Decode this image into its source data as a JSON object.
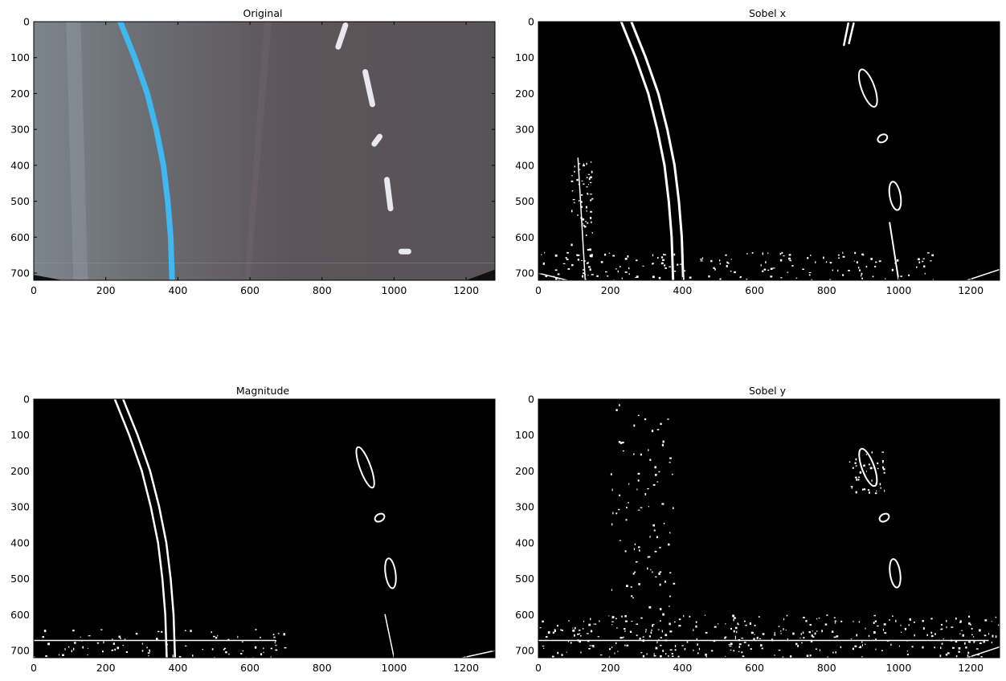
{
  "figure": {
    "panels": [
      {
        "title": "Original",
        "kind": "original"
      },
      {
        "title": "Sobel x",
        "kind": "sobelx"
      },
      {
        "title": "Magnitude",
        "kind": "magnitude"
      },
      {
        "title": "Sobel y",
        "kind": "sobely"
      }
    ]
  },
  "axes": {
    "x_ticks": [
      "0",
      "200",
      "400",
      "600",
      "800",
      "1000",
      "1200"
    ],
    "x_tick_values": [
      0,
      200,
      400,
      600,
      800,
      1000,
      1200
    ],
    "y_ticks": [
      "0",
      "100",
      "200",
      "300",
      "400",
      "500",
      "600",
      "700"
    ],
    "y_tick_values": [
      0,
      100,
      200,
      300,
      400,
      500,
      600,
      700
    ],
    "x_range": [
      0,
      1280
    ],
    "y_range": [
      0,
      720
    ]
  },
  "colors": {
    "binary_bg": "#000000",
    "binary_fg": "#ffffff",
    "road": "#5a5659",
    "lane_line": "#3fb7f0",
    "figure_bg": "#ffffff"
  }
}
